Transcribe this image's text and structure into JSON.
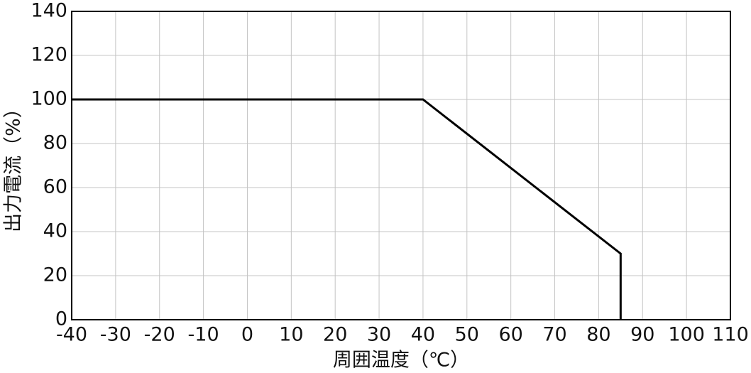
{
  "chart_data": {
    "type": "line",
    "xlabel": "周囲温度（℃）",
    "ylabel": "出力電流（%）",
    "x": [
      -40,
      40,
      85,
      85
    ],
    "series": [
      {
        "color": "#000000",
        "values": [
          100,
          100,
          30,
          0
        ]
      }
    ],
    "xlim": [
      -40,
      110
    ],
    "xticks": [
      -40,
      -30,
      -20,
      -10,
      0,
      10,
      20,
      30,
      40,
      50,
      60,
      70,
      80,
      90,
      100,
      110
    ],
    "ylim": [
      0,
      140
    ],
    "yticks": [
      0,
      20,
      40,
      60,
      80,
      100,
      120,
      140
    ],
    "grid": true
  }
}
